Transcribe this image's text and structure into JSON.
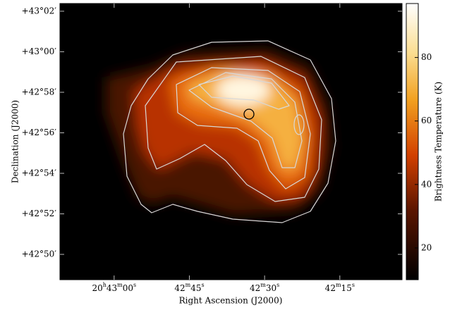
{
  "chart_data": {
    "type": "image",
    "x_label": "Right Ascension (J2000)",
    "y_label": "Declination (J2000)",
    "colorbar_label": "Brightness Temperature (K)",
    "xlim": [
      74590.8,
      74522.6
    ],
    "xticks": [
      {
        "value": 74580,
        "label": "20h43m00s"
      },
      {
        "value": 74565,
        "label": "42m45s"
      },
      {
        "value": 74550,
        "label": "42m30s"
      },
      {
        "value": 74535,
        "label": "42m15s"
      }
    ],
    "ylim": [
      2568.75,
      2582.38
    ],
    "yticks": [
      {
        "value": 2582,
        "label": "+43°02′"
      },
      {
        "value": 2580,
        "label": "+43°00′"
      },
      {
        "value": 2578,
        "label": "+42°58′"
      },
      {
        "value": 2576,
        "label": "+42°56′"
      },
      {
        "value": 2574,
        "label": "+42°54′"
      },
      {
        "value": 2572,
        "label": "+42°52′"
      },
      {
        "value": 2570,
        "label": "+42°50′"
      }
    ],
    "clim": [
      10,
      97
    ],
    "cticks": [
      20,
      40,
      60,
      80
    ]
  }
}
